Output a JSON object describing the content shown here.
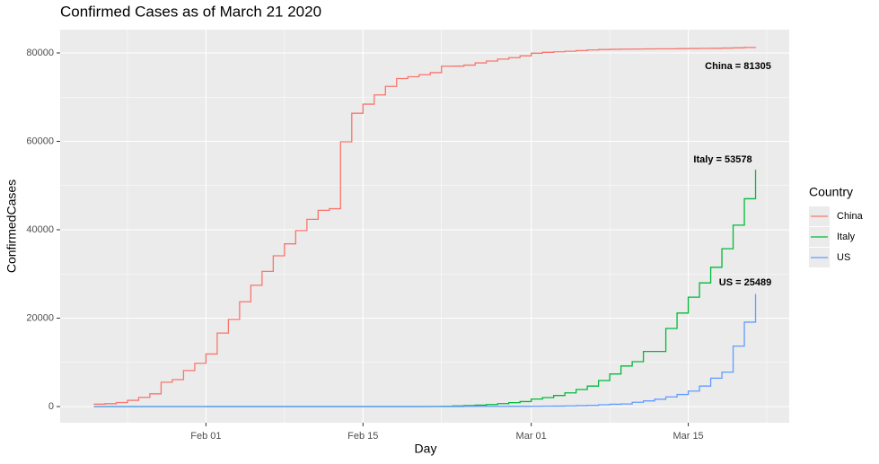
{
  "chart_data": {
    "type": "step",
    "title": "Confirmed Cases as of March 21 2020",
    "x_label": "Day",
    "y_label": "ConfirmedCases",
    "legend_title": "Country",
    "x": [
      "Jan 22",
      "Jan 23",
      "Jan 24",
      "Jan 25",
      "Jan 26",
      "Jan 27",
      "Jan 28",
      "Jan 29",
      "Jan 30",
      "Jan 31",
      "Feb 01",
      "Feb 02",
      "Feb 03",
      "Feb 04",
      "Feb 05",
      "Feb 06",
      "Feb 07",
      "Feb 08",
      "Feb 09",
      "Feb 10",
      "Feb 11",
      "Feb 12",
      "Feb 13",
      "Feb 14",
      "Feb 15",
      "Feb 16",
      "Feb 17",
      "Feb 18",
      "Feb 19",
      "Feb 20",
      "Feb 21",
      "Feb 22",
      "Feb 23",
      "Feb 24",
      "Feb 25",
      "Feb 26",
      "Feb 27",
      "Feb 28",
      "Feb 29",
      "Mar 01",
      "Mar 02",
      "Mar 03",
      "Mar 04",
      "Mar 05",
      "Mar 06",
      "Mar 07",
      "Mar 08",
      "Mar 09",
      "Mar 10",
      "Mar 11",
      "Mar 12",
      "Mar 13",
      "Mar 14",
      "Mar 15",
      "Mar 16",
      "Mar 17",
      "Mar 18",
      "Mar 19",
      "Mar 20",
      "Mar 21"
    ],
    "series": [
      {
        "name": "China",
        "color": "#F8766D",
        "values": [
          548,
          643,
          920,
          1406,
          2075,
          2877,
          5509,
          6087,
          8141,
          9802,
          11891,
          16630,
          19716,
          23707,
          27440,
          30587,
          34110,
          36814,
          39829,
          42354,
          44386,
          44759,
          59895,
          66358,
          68413,
          70513,
          72434,
          74211,
          74619,
          75077,
          75550,
          77001,
          77022,
          77241,
          77754,
          78166,
          78600,
          78928,
          79356,
          79932,
          80136,
          80261,
          80386,
          80537,
          80690,
          80770,
          80823,
          80860,
          80887,
          80921,
          80932,
          80945,
          80977,
          81003,
          81033,
          81058,
          81102,
          81156,
          81250,
          81305
        ]
      },
      {
        "name": "Italy",
        "color": "#00BA38",
        "values": [
          0,
          0,
          0,
          0,
          0,
          0,
          0,
          0,
          0,
          2,
          2,
          2,
          2,
          2,
          2,
          2,
          2,
          2,
          2,
          2,
          2,
          2,
          2,
          2,
          2,
          2,
          2,
          2,
          2,
          2,
          20,
          62,
          155,
          229,
          322,
          453,
          655,
          888,
          1128,
          1694,
          2036,
          2502,
          3089,
          3858,
          4636,
          5883,
          7375,
          9172,
          10149,
          12462,
          12462,
          17660,
          21157,
          24747,
          27980,
          31506,
          35713,
          41035,
          47021,
          53578
        ]
      },
      {
        "name": "US",
        "color": "#619CFF",
        "values": [
          1,
          1,
          2,
          2,
          5,
          5,
          5,
          5,
          5,
          7,
          8,
          8,
          11,
          11,
          11,
          11,
          11,
          11,
          11,
          11,
          12,
          12,
          13,
          13,
          13,
          13,
          13,
          13,
          13,
          13,
          15,
          15,
          15,
          51,
          51,
          57,
          58,
          60,
          68,
          74,
          98,
          118,
          149,
          217,
          262,
          402,
          518,
          583,
          959,
          1281,
          1663,
          2179,
          2727,
          3499,
          4632,
          6421,
          7786,
          13680,
          19101,
          25489
        ]
      }
    ],
    "annotations": [
      "China = 81305",
      "Italy = 53578",
      "US = 25489"
    ],
    "xlim": [
      "Jan 19",
      "Mar 24"
    ],
    "xticks": [
      "Feb 01",
      "Feb 15",
      "Mar 01",
      "Mar 15"
    ],
    "xminorticks": [
      "Jan 25",
      "Feb 08",
      "Feb 22",
      "Mar 08",
      "Mar 22"
    ],
    "ylim": [
      -3655,
      85279
    ],
    "yticks": [
      0,
      20000,
      40000,
      60000,
      80000
    ],
    "yminorticks": [
      10000,
      30000,
      50000,
      70000
    ],
    "grid": true
  }
}
